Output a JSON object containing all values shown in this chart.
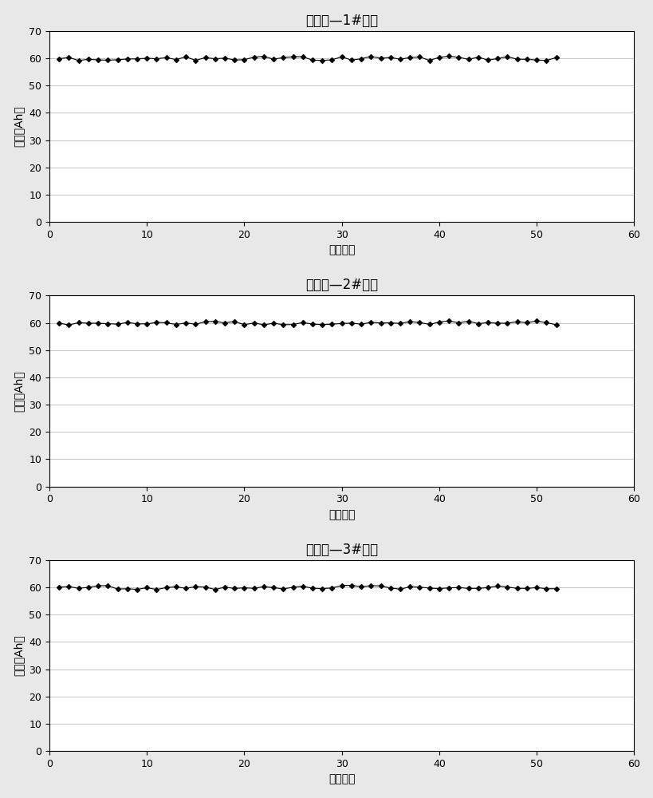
{
  "charts": [
    {
      "title": "实施例—1#电池",
      "xlabel": "循环次数",
      "ylabel": "容量（Ah）",
      "xlim": [
        0,
        60
      ],
      "ylim": [
        0,
        70
      ],
      "xticks": [
        0,
        10,
        20,
        30,
        40,
        50,
        60
      ],
      "yticks": [
        0,
        10,
        20,
        30,
        40,
        50,
        60,
        70
      ],
      "base_value": 60.0,
      "noise_scale": 0.8,
      "num_points": 52,
      "seed": 1
    },
    {
      "title": "实施例—2#电池",
      "xlabel": "循环次数",
      "ylabel": "容量（Ah）",
      "xlim": [
        0,
        60
      ],
      "ylim": [
        0,
        70
      ],
      "xticks": [
        0,
        10,
        20,
        30,
        40,
        50,
        60
      ],
      "yticks": [
        0,
        10,
        20,
        30,
        40,
        50,
        60,
        70
      ],
      "base_value": 60.0,
      "noise_scale": 0.8,
      "num_points": 52,
      "seed": 2
    },
    {
      "title": "实施例—3#电池",
      "xlabel": "循环次数",
      "ylabel": "容量（Ah）",
      "xlim": [
        0,
        60
      ],
      "ylim": [
        0,
        70
      ],
      "xticks": [
        0,
        10,
        20,
        30,
        40,
        50,
        60
      ],
      "yticks": [
        0,
        10,
        20,
        30,
        40,
        50,
        60,
        70
      ],
      "base_value": 60.0,
      "noise_scale": 0.8,
      "num_points": 52,
      "seed": 3
    }
  ],
  "line_color": "#000000",
  "marker": "D",
  "marker_size": 3,
  "line_width": 0.8,
  "background_color": "#ffffff",
  "grid_color": "#bbbbbb",
  "title_fontsize": 12,
  "label_fontsize": 10,
  "tick_fontsize": 9,
  "figure_facecolor": "#e8e8e8"
}
